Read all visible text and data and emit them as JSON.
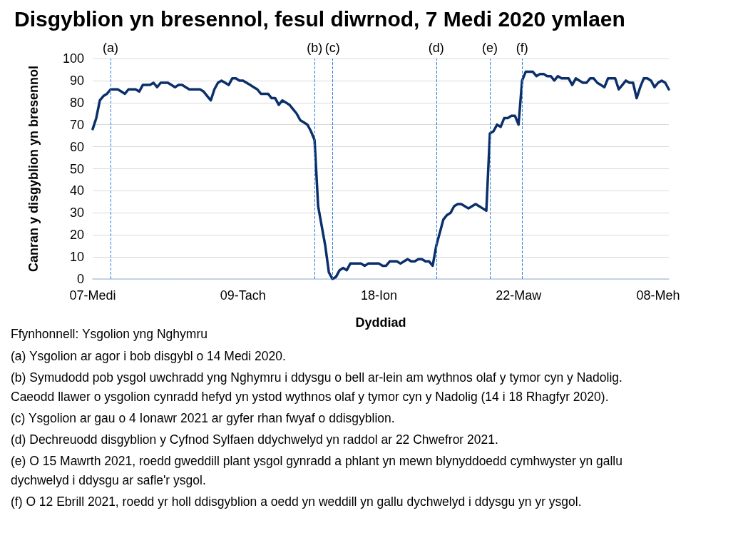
{
  "chart_data": {
    "type": "line",
    "title": "Disgyblion yn bresennol, fesul diwrnod, 7 Medi 2020 ymlaen",
    "xlabel": "Dyddiad",
    "ylabel": "Canran y disgyblion yn bresennol",
    "categories": [
      "07-Medi",
      null,
      null,
      null,
      null,
      null,
      null,
      null,
      null,
      null,
      null,
      null,
      null,
      null,
      null,
      null,
      null,
      null,
      null,
      null,
      null,
      null,
      null,
      null,
      null,
      null,
      null,
      null,
      null,
      null,
      null,
      null,
      null,
      null,
      null,
      null,
      null,
      null,
      null,
      null,
      null,
      null,
      "09-Tach",
      null,
      null,
      null,
      null,
      null,
      null,
      null,
      null,
      null,
      null,
      null,
      null,
      null,
      null,
      null,
      null,
      null,
      null,
      null,
      null,
      null,
      null,
      null,
      null,
      null,
      null,
      null,
      null,
      null,
      null,
      null,
      null,
      null,
      null,
      null,
      null,
      null,
      "18-Ion",
      null,
      null,
      null,
      null,
      null,
      null,
      null,
      null,
      null,
      null,
      null,
      null,
      null,
      null,
      null,
      null,
      null,
      null,
      null,
      null,
      null,
      null,
      null,
      null,
      null,
      null,
      null,
      null,
      null,
      null,
      null,
      null,
      null,
      null,
      null,
      null,
      null,
      null,
      "22-Maw",
      null,
      null,
      null,
      null,
      null,
      null,
      null,
      null,
      null,
      null,
      null,
      null,
      null,
      null,
      null,
      null,
      null,
      null,
      null,
      null,
      null,
      null,
      null,
      null,
      null,
      null,
      null,
      null,
      null,
      null,
      null,
      null,
      null,
      null,
      null,
      null,
      null,
      null,
      "08-Meh",
      null,
      null,
      null
    ],
    "ylim": [
      0,
      100
    ],
    "yticks": [
      0,
      10,
      20,
      30,
      40,
      50,
      60,
      70,
      80,
      90,
      100
    ],
    "grid": "y",
    "marker": "none",
    "line_style": "solid",
    "series": [
      {
        "color": "#0b2f6b",
        "values": [
          68,
          73,
          81,
          83,
          84,
          86,
          86,
          86,
          85,
          84,
          86,
          86,
          86,
          85,
          88,
          88,
          88,
          89,
          87,
          89,
          89,
          89,
          88,
          87,
          88,
          88,
          87,
          86,
          86,
          86,
          86,
          85,
          83,
          81,
          86,
          89,
          90,
          89,
          88,
          91,
          91,
          90,
          90,
          89,
          88,
          87,
          86,
          84,
          84,
          84,
          82,
          82,
          79,
          81,
          80,
          79,
          77,
          75,
          72,
          71,
          70,
          67,
          63,
          33,
          24,
          15,
          3,
          0,
          1,
          4,
          5,
          4,
          7,
          7,
          7,
          7,
          6,
          7,
          7,
          7,
          7,
          6,
          6,
          8,
          8,
          8,
          7,
          8,
          9,
          8,
          8,
          9,
          9,
          8,
          8,
          6,
          15,
          21,
          27,
          29,
          30,
          33,
          34,
          34,
          33,
          32,
          33,
          34,
          33,
          32,
          31,
          66,
          67,
          70,
          69,
          73,
          73,
          74,
          74,
          70,
          90,
          94,
          94,
          94,
          92,
          93,
          93,
          92,
          92,
          90,
          92,
          91,
          91,
          91,
          88,
          91,
          90,
          89,
          89,
          91,
          91,
          89,
          88,
          87,
          91,
          91,
          91,
          86,
          88,
          90,
          89,
          89,
          82,
          87,
          91,
          91,
          90,
          87,
          89,
          90,
          89,
          86
        ]
      }
    ],
    "annotations": [
      {
        "text": "(a)"
      },
      {
        "text": "(b)"
      },
      {
        "text": "(c)"
      },
      {
        "text": "(d)"
      },
      {
        "text": "(e)"
      },
      {
        "text": "(f)"
      },
      "Ffynhonnell: Ysgolion yng Nghymru",
      "(a) Ysgolion ar agor i bob disgybl o 14 Medi 2020.",
      "(b) Symudodd pob ysgol uwchradd yng Nghymru i ddysgu o bell ar-lein am wythnos olaf y tymor cyn y Nadolig. Caeodd llawer o ysgolion cynradd hefyd yn ystod wythnos olaf y tymor cyn y Nadolig (14 i 18 Rhagfyr 2020).",
      "(c) Ysgolion ar gau o 4 Ionawr 2021 ar gyfer rhan fwyaf o ddisgyblion.",
      "(d) Dechreuodd disgyblion y Cyfnod Sylfaen ddychwelyd yn raddol ar 22 Chwefror 2021.",
      "(e) O 15 Mawrth 2021, roedd gweddill plant ysgol gynradd a phlant yn mewn blynyddoedd cymhwyster yn gallu dychwelyd i ddysgu ar safle'r ysgol.",
      "(f) O 12 Ebrill 2021, roedd yr holl ddisgyblion a oedd yn weddill yn gallu dychwelyd i ddysgu yn yr ysgol."
    ]
  }
}
